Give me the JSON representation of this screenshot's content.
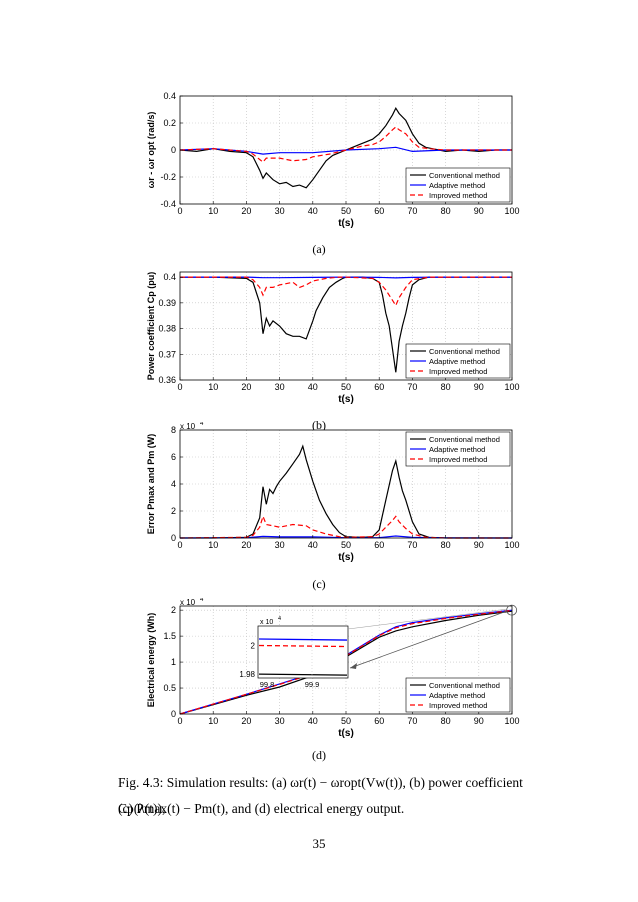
{
  "figure": {
    "caption_label": "Fig. 4.3:",
    "caption_line1": "Simulation results: (a) ωr(t) − ωropt(Vw(t)), (b) power coefficient Cp(λ(t)),",
    "caption_line2": "(c) Pmax(t) − Pm(t), and (d) electrical energy output.",
    "page_number": "35"
  },
  "legend_labels": [
    "Conventional method",
    "Adaptive method",
    "Improved method"
  ],
  "colors": {
    "conventional": "#000000",
    "adaptive": "#0000ff",
    "improved": "#ff0000",
    "grid": "#bfbfbf"
  },
  "chart_data": [
    {
      "type": "line",
      "sublabel": "(a)",
      "ylabel_main": "ωr - ωr opt (rad/s)",
      "xlabel": "t(s)",
      "xlim": [
        0,
        100
      ],
      "ylim": [
        -0.4,
        0.4
      ],
      "xticks": [
        0,
        10,
        20,
        30,
        40,
        50,
        60,
        70,
        80,
        90,
        100
      ],
      "yticks": [
        -0.4,
        -0.2,
        0,
        0.2,
        0.4
      ],
      "ytick_labels": [
        "-0.4",
        "-0.2",
        "0",
        "0.2",
        "0.4"
      ],
      "grid": true,
      "legend": "bottom-right",
      "series": [
        {
          "name": "Conventional method",
          "x": [
            0,
            5,
            10,
            15,
            20,
            22,
            24,
            25,
            26,
            28,
            30,
            32,
            34,
            36,
            38,
            40,
            42,
            44,
            46,
            48,
            50,
            52,
            54,
            56,
            58,
            60,
            62,
            64,
            65,
            66,
            68,
            70,
            72,
            74,
            76,
            78,
            80,
            85,
            90,
            95,
            100
          ],
          "y": [
            0,
            -0.01,
            0.01,
            -0.01,
            -0.02,
            -0.05,
            -0.15,
            -0.21,
            -0.17,
            -0.22,
            -0.25,
            -0.24,
            -0.27,
            -0.26,
            -0.28,
            -0.22,
            -0.15,
            -0.08,
            -0.04,
            -0.02,
            0,
            0.02,
            0.04,
            0.06,
            0.08,
            0.12,
            0.18,
            0.26,
            0.31,
            0.27,
            0.22,
            0.12,
            0.05,
            0.02,
            0.01,
            0.0,
            -0.01,
            0.0,
            -0.01,
            0.0,
            0.0
          ]
        },
        {
          "name": "Adaptive method",
          "x": [
            0,
            10,
            20,
            25,
            30,
            40,
            50,
            60,
            65,
            70,
            80,
            90,
            100
          ],
          "y": [
            0,
            0.01,
            -0.01,
            -0.03,
            -0.02,
            -0.02,
            0,
            0.01,
            0.02,
            -0.01,
            0,
            0,
            0
          ]
        },
        {
          "name": "Improved method",
          "x": [
            0,
            10,
            20,
            22,
            24,
            25,
            26,
            30,
            34,
            38,
            40,
            45,
            50,
            55,
            58,
            60,
            62,
            64,
            65,
            66,
            68,
            70,
            72,
            75,
            80,
            90,
            100
          ],
          "y": [
            0,
            0.01,
            -0.01,
            -0.03,
            -0.07,
            -0.09,
            -0.06,
            -0.06,
            -0.08,
            -0.07,
            -0.05,
            -0.03,
            0,
            0.03,
            0.04,
            0.06,
            0.1,
            0.15,
            0.17,
            0.15,
            0.12,
            0.06,
            0.02,
            0.01,
            0,
            0,
            0
          ]
        }
      ]
    },
    {
      "type": "line",
      "sublabel": "(b)",
      "ylabel_main": "Power coefficient Cp (pu)",
      "xlabel": "t(s)",
      "xlim": [
        0,
        100
      ],
      "ylim": [
        0.36,
        0.402
      ],
      "xticks": [
        0,
        10,
        20,
        30,
        40,
        50,
        60,
        70,
        80,
        90,
        100
      ],
      "yticks": [
        0.36,
        0.37,
        0.38,
        0.39,
        0.4
      ],
      "ytick_labels": [
        "0.36",
        "0.37",
        "0.38",
        "0.39",
        "0.4"
      ],
      "grid": true,
      "legend": "bottom-right",
      "series": [
        {
          "name": "Conventional method",
          "x": [
            0,
            10,
            20,
            22,
            24,
            25,
            26,
            27,
            28,
            30,
            32,
            34,
            36,
            38,
            40,
            41,
            43,
            45,
            47,
            49,
            50,
            55,
            58,
            60,
            61,
            62,
            63,
            64,
            65,
            66,
            67,
            68,
            69,
            70,
            72,
            75,
            80,
            90,
            100
          ],
          "y": [
            0.4,
            0.4,
            0.3995,
            0.398,
            0.39,
            0.378,
            0.384,
            0.381,
            0.383,
            0.381,
            0.378,
            0.377,
            0.377,
            0.376,
            0.383,
            0.387,
            0.392,
            0.396,
            0.398,
            0.3995,
            0.4,
            0.4,
            0.3995,
            0.398,
            0.393,
            0.386,
            0.381,
            0.372,
            0.363,
            0.375,
            0.381,
            0.386,
            0.392,
            0.397,
            0.399,
            0.4,
            0.4,
            0.4,
            0.4
          ]
        },
        {
          "name": "Adaptive method",
          "x": [
            0,
            20,
            25,
            30,
            40,
            50,
            60,
            65,
            70,
            80,
            100
          ],
          "y": [
            0.4,
            0.4,
            0.3998,
            0.3998,
            0.3999,
            0.4,
            0.3999,
            0.3997,
            0.3999,
            0.4,
            0.4
          ]
        },
        {
          "name": "Improved method",
          "x": [
            0,
            20,
            22,
            24,
            25,
            26,
            28,
            30,
            34,
            36,
            38,
            40,
            44,
            48,
            50,
            58,
            60,
            62,
            64,
            65,
            66,
            68,
            70,
            75,
            80,
            100
          ],
          "y": [
            0.4,
            0.4,
            0.399,
            0.396,
            0.393,
            0.396,
            0.396,
            0.397,
            0.398,
            0.396,
            0.397,
            0.3985,
            0.3995,
            0.4,
            0.4,
            0.3995,
            0.398,
            0.395,
            0.391,
            0.389,
            0.392,
            0.396,
            0.399,
            0.4,
            0.4,
            0.4
          ]
        }
      ]
    },
    {
      "type": "line",
      "sublabel": "(c)",
      "ylabel_main": "Error  Pmax and  Pm (W)",
      "xlabel": "t(s)",
      "multiplier": "x 10",
      "multiplier_exp": "4",
      "xlim": [
        0,
        100
      ],
      "ylim": [
        0,
        80000
      ],
      "xticks": [
        0,
        10,
        20,
        30,
        40,
        50,
        60,
        70,
        80,
        90,
        100
      ],
      "yticks": [
        0,
        20000,
        40000,
        60000,
        80000
      ],
      "ytick_labels": [
        "0",
        "2",
        "4",
        "6",
        "8"
      ],
      "grid": true,
      "legend": "top-right",
      "series": [
        {
          "name": "Conventional method",
          "x": [
            0,
            10,
            20,
            22,
            24,
            25,
            26,
            27,
            28,
            29,
            30,
            32,
            34,
            36,
            37,
            38,
            40,
            42,
            44,
            46,
            48,
            50,
            55,
            58,
            60,
            62,
            64,
            65,
            66,
            67,
            68,
            70,
            72,
            75,
            80,
            90,
            100
          ],
          "y": [
            0,
            0,
            500,
            3000,
            15000,
            38000,
            25000,
            36000,
            33000,
            38000,
            42000,
            48000,
            55000,
            62000,
            68000,
            58000,
            42000,
            28000,
            18000,
            10000,
            4000,
            1000,
            500,
            1000,
            6000,
            28000,
            50000,
            57000,
            45000,
            35000,
            28000,
            12000,
            3000,
            500,
            0,
            0,
            0
          ]
        },
        {
          "name": "Adaptive method",
          "x": [
            0,
            20,
            25,
            30,
            40,
            50,
            60,
            65,
            70,
            80,
            100
          ],
          "y": [
            0,
            200,
            1200,
            800,
            900,
            200,
            300,
            1500,
            500,
            100,
            0
          ]
        },
        {
          "name": "Improved method",
          "x": [
            0,
            20,
            22,
            24,
            25,
            26,
            28,
            30,
            34,
            38,
            40,
            44,
            48,
            50,
            58,
            60,
            62,
            64,
            65,
            66,
            68,
            70,
            74,
            80,
            100
          ],
          "y": [
            0,
            500,
            2000,
            8000,
            16000,
            10000,
            9000,
            8000,
            10000,
            9000,
            6000,
            3000,
            1000,
            500,
            1000,
            3000,
            8000,
            13000,
            16000,
            12000,
            7000,
            3000,
            500,
            0,
            0
          ]
        }
      ]
    },
    {
      "type": "line",
      "sublabel": "(d)",
      "ylabel_main": "Electrical energy (Wh)",
      "xlabel": "t(s)",
      "multiplier": "x 10",
      "multiplier_exp": "4",
      "xlim": [
        0,
        100
      ],
      "ylim": [
        0,
        20800
      ],
      "xticks": [
        0,
        10,
        20,
        30,
        40,
        50,
        60,
        70,
        80,
        90,
        100
      ],
      "yticks": [
        0,
        5000,
        10000,
        15000,
        20000
      ],
      "ytick_labels": [
        "0",
        "0.5",
        "1",
        "1.5",
        "2"
      ],
      "grid": true,
      "legend": "bottom-right",
      "series": [
        {
          "name": "Conventional method",
          "x": [
            0,
            10,
            20,
            30,
            40,
            50,
            60,
            65,
            70,
            80,
            90,
            100
          ],
          "y": [
            0,
            1800,
            3600,
            5200,
            7400,
            11000,
            14800,
            16000,
            16800,
            18000,
            19000,
            19800
          ]
        },
        {
          "name": "Adaptive method",
          "x": [
            0,
            10,
            20,
            30,
            40,
            50,
            60,
            65,
            70,
            80,
            90,
            100
          ],
          "y": [
            0,
            1900,
            3800,
            5800,
            7800,
            11300,
            15200,
            16800,
            17600,
            18500,
            19300,
            20000
          ]
        },
        {
          "name": "Improved method",
          "x": [
            0,
            10,
            20,
            30,
            40,
            50,
            60,
            65,
            70,
            80,
            90,
            100
          ],
          "y": [
            0,
            1900,
            3800,
            5700,
            7700,
            11200,
            15100,
            16600,
            17400,
            18400,
            19200,
            19950
          ]
        }
      ],
      "inset": {
        "multiplier": "x 10",
        "multiplier_exp": "4",
        "xlim": [
          99.78,
          99.98
        ],
        "ylim": [
          19750,
          20150
        ],
        "xtick_labels": [
          "99.8",
          "99.9"
        ],
        "ytick_labels": [
          "2",
          "1.98"
        ]
      }
    }
  ]
}
